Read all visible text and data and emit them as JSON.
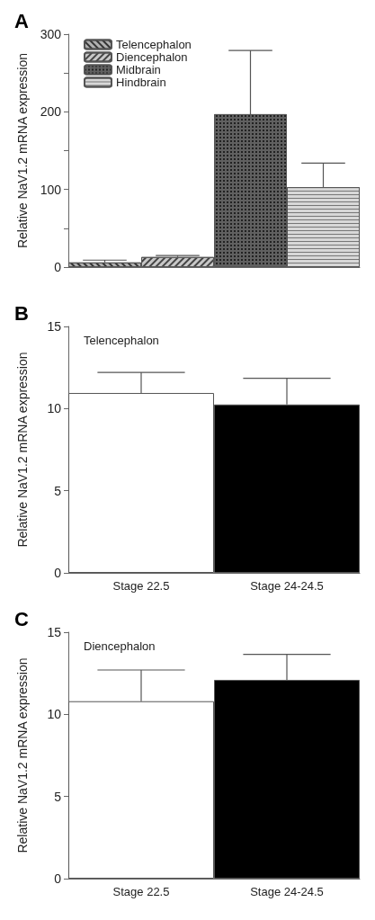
{
  "chart_data": [
    {
      "type": "bar",
      "annotations": [
        "A"
      ],
      "ylabel": "Relative NaV1.2 mRNA expression",
      "categories": [
        null,
        null,
        null,
        null
      ],
      "ylim": [
        0,
        300
      ],
      "yticks": [
        0,
        {
          "value": 50,
          "label": null
        },
        100,
        {
          "value": 150,
          "label": null
        },
        200,
        {
          "value": 250,
          "label": null
        },
        300
      ],
      "legend": "top left",
      "grid": false,
      "series": [
        {
          "name": "Telencephalon",
          "color": "#b0b0b0",
          "values": [
            6,
            null,
            null,
            null
          ],
          "errors": [
            [
              6,
              9
            ],
            null,
            null,
            null
          ]
        },
        {
          "name": "Diencephalon",
          "color": "#c8c8c8",
          "values": [
            null,
            13,
            null,
            null
          ],
          "errors": [
            null,
            [
              13,
              15
            ],
            null,
            null
          ]
        },
        {
          "name": "Midbrain",
          "color": "#606060",
          "values": [
            null,
            null,
            197,
            null
          ],
          "errors": [
            null,
            null,
            [
              197,
              279
            ],
            null
          ]
        },
        {
          "name": "Hindbrain",
          "color": "#d8d8d8",
          "values": [
            null,
            null,
            null,
            103
          ],
          "errors": [
            null,
            null,
            null,
            [
              103,
              134
            ]
          ]
        }
      ]
    },
    {
      "type": "bar",
      "annotations": [
        "B"
      ],
      "title": "Telencephalon",
      "ylabel": "Relative NaV1.2 mRNA expression",
      "categories": [
        "Stage 22.5",
        "Stage 24-24.5"
      ],
      "ylim": [
        0,
        15
      ],
      "yticks": [
        0,
        5,
        10,
        15
      ],
      "grid": false,
      "values": [
        10.95,
        10.25
      ],
      "colors": [
        "#ffffff",
        "#000000"
      ],
      "errors": [
        [
          10.95,
          12.2
        ],
        [
          10.25,
          11.85
        ]
      ]
    },
    {
      "type": "bar",
      "annotations": [
        "C"
      ],
      "title": "Diencephalon",
      "ylabel": "Relative NaV1.2 mRNA expression",
      "categories": [
        "Stage 22.5",
        "Stage 24-24.5"
      ],
      "ylim": [
        0,
        15
      ],
      "yticks": [
        0,
        5,
        10,
        15
      ],
      "grid": false,
      "values": [
        10.8,
        12.1
      ],
      "colors": [
        "#ffffff",
        "#000000"
      ],
      "errors": [
        [
          10.8,
          12.7
        ],
        [
          12.1,
          13.65
        ]
      ]
    }
  ]
}
